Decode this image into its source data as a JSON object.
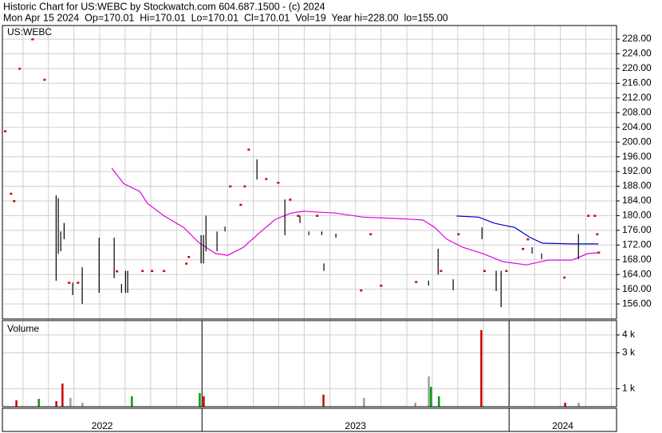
{
  "header": {
    "title": "Historic Chart for US:WEBC by Stockwatch.com 604.687.1500 - (c) 2024",
    "quote": "Mon Apr 15 2024  Op=170.01  Hi=170.01  Lo=170.01  Cl=170.01  Vol=19  Year hi=228.00  lo=155.00"
  },
  "chart_data": [
    {
      "type": "ohlc",
      "label": "US:WEBC",
      "color": "#000000",
      "dot_color": "#cc0000",
      "grid": true,
      "xlim": [
        2022.35,
        2024.35
      ],
      "ylim": [
        151.9,
        231.7
      ],
      "yticks": [
        {
          "value": 156,
          "label": "156.00"
        },
        {
          "value": 160,
          "label": "160.00"
        },
        {
          "value": 164,
          "label": "164.00"
        },
        {
          "value": 168,
          "label": "168.00"
        },
        {
          "value": 172,
          "label": "172.00"
        },
        {
          "value": 176,
          "label": "176.00"
        },
        {
          "value": 180,
          "label": "180.00"
        },
        {
          "value": 184,
          "label": "184.00"
        },
        {
          "value": 188,
          "label": "188.00"
        },
        {
          "value": 192,
          "label": "192.00"
        },
        {
          "value": 196,
          "label": "196.00"
        },
        {
          "value": 200,
          "label": "200.00"
        },
        {
          "value": 204,
          "label": "204.00"
        },
        {
          "value": 208,
          "label": "208.00"
        },
        {
          "value": 212,
          "label": "212.00"
        },
        {
          "value": 216,
          "label": "216.00"
        },
        {
          "value": 220,
          "label": "220.00"
        },
        {
          "value": 224,
          "label": "224.00"
        },
        {
          "value": 228,
          "label": "228.00"
        }
      ],
      "xgrid": [
        2022.417,
        2022.5,
        2022.583,
        2022.667,
        2022.75,
        2022.833,
        2022.917,
        2023,
        2023.083,
        2023.167,
        2023.25,
        2023.333,
        2023.417,
        2023.5,
        2023.583,
        2023.667,
        2023.75,
        2023.833,
        2023.917,
        2024,
        2024.083,
        2024.167,
        2024.25,
        2024.333
      ],
      "x": [
        2022.358,
        2022.377,
        2022.387,
        2022.405,
        2022.447,
        2022.486,
        2022.525,
        2022.532,
        2022.54,
        2022.551,
        2022.566,
        2022.579,
        2022.595,
        2022.61,
        2022.665,
        2022.714,
        2022.722,
        2022.738,
        2022.751,
        2022.758,
        2022.805,
        2022.836,
        2022.875,
        2022.948,
        2022.956,
        2022.997,
        2023.005,
        2023.013,
        2023.049,
        2023.075,
        2023.091,
        2023.125,
        2023.138,
        2023.151,
        2023.179,
        2023.208,
        2023.247,
        2023.27,
        2023.286,
        2023.312,
        2023.319,
        2023.348,
        2023.374,
        2023.39,
        2023.397,
        2023.436,
        2023.517,
        2023.548,
        2023.582,
        2023.696,
        2023.738,
        2023.769,
        2023.777,
        2023.818,
        2023.834,
        2023.912,
        2023.919,
        2023.958,
        2023.974,
        2023.99,
        2024.044,
        2024.06,
        2024.075,
        2024.106,
        2024.179,
        2024.226,
        2024.257,
        2024.278,
        2024.286,
        2024.291
      ],
      "high": [
        203,
        186,
        184,
        220,
        228,
        217,
        185.5,
        184.8,
        175.7,
        178,
        161.8,
        161.8,
        161.8,
        166,
        174,
        174,
        164.9,
        161.4,
        165,
        165,
        165,
        165,
        165,
        167,
        168.8,
        174.7,
        174.7,
        180,
        175.7,
        177,
        188,
        183,
        188,
        198,
        195.3,
        190,
        189,
        184.4,
        184.4,
        180,
        180,
        175.7,
        180,
        175.7,
        167,
        175.1,
        159.7,
        175,
        161,
        162,
        162.3,
        171,
        165,
        162.7,
        175,
        176.8,
        165,
        165,
        165,
        165,
        171,
        173.6,
        171.4,
        169.7,
        163.2,
        175,
        180,
        180,
        175,
        170.01
      ],
      "low": [
        203,
        186,
        184,
        220,
        228,
        217,
        162.3,
        169.6,
        170.3,
        173.6,
        161.8,
        158.4,
        161.8,
        156,
        159,
        163,
        164.9,
        159,
        159,
        159,
        165,
        165,
        165,
        167,
        168.8,
        167,
        167,
        170.3,
        170.3,
        175.7,
        188,
        183,
        188,
        198,
        189.8,
        190,
        189,
        174.7,
        184.4,
        180,
        178,
        174.7,
        180,
        174.7,
        165,
        174,
        159.7,
        175,
        161,
        162,
        161,
        164,
        165,
        159.7,
        175,
        173.6,
        165,
        159.5,
        155.1,
        165,
        171,
        173.6,
        169.7,
        168.2,
        163.2,
        168.2,
        180,
        180,
        175,
        170.01
      ],
      "lines": [
        {
          "color": "#e000e0",
          "x": [
            2022.706,
            2022.745,
            2022.797,
            2022.823,
            2022.875,
            2022.94,
            2022.992,
            2023.044,
            2023.083,
            2023.135,
            2023.187,
            2023.239,
            2023.291,
            2023.33,
            2023.434,
            2023.525,
            2023.642,
            2023.719,
            2023.758,
            2023.797,
            2023.849,
            2023.914,
            2023.979,
            2024.057,
            2024.127,
            2024.205,
            2024.257,
            2024.291
          ],
          "values": [
            192.9,
            188.7,
            186.6,
            183.3,
            180,
            176.8,
            172.5,
            169.7,
            169.2,
            171.4,
            175.3,
            179,
            180.7,
            181.2,
            180.7,
            179.6,
            179.2,
            178.8,
            176.8,
            173.6,
            171.4,
            169.7,
            167.5,
            166.6,
            167.9,
            167.9,
            169.7,
            169.9
          ]
        },
        {
          "color": "#0000cc",
          "x": [
            2023.829,
            2023.901,
            2023.953,
            2024.018,
            2024.07,
            2024.109,
            2024.205,
            2024.291
          ],
          "values": [
            179.9,
            179.6,
            177.9,
            176.8,
            174,
            172.5,
            172.3,
            172.3
          ]
        }
      ]
    },
    {
      "type": "bar",
      "label": "Volume",
      "grid": true,
      "xlim": [
        2022.35,
        2024.35
      ],
      "ylim": [
        0,
        4800
      ],
      "yticks": [
        {
          "value": 1000,
          "label": "1 k"
        },
        {
          "value": 3000,
          "label": "3 k"
        },
        {
          "value": 4000,
          "label": "4 k"
        }
      ],
      "xticks": [
        2023,
        2024
      ],
      "x_labels": [
        "2022",
        "2023",
        "2024"
      ],
      "x": [
        2022.395,
        2022.468,
        2022.525,
        2022.545,
        2022.571,
        2022.61,
        2022.771,
        2022.992,
        2023.005,
        2023.395,
        2023.527,
        2023.694,
        2023.738,
        2023.745,
        2023.771,
        2023.909,
        2024.182,
        2024.226,
        2024.291
      ],
      "values": [
        360,
        440,
        310,
        1290,
        490,
        220,
        580,
        760,
        580,
        670,
        490,
        220,
        1690,
        1110,
        580,
        4270,
        220,
        220,
        19
      ],
      "colors": [
        "#cc0000",
        "#00a000",
        "#cc0000",
        "#cc0000",
        "#a0a0a0",
        "#a0a0a0",
        "#00a000",
        "#00a000",
        "#cc0000",
        "#cc0000",
        "#a0a0a0",
        "#a0a0a0",
        "#a0a0a0",
        "#00a000",
        "#00a000",
        "#cc0000",
        "#cc0000",
        "#a0a0a0",
        "#cc0000"
      ]
    }
  ]
}
